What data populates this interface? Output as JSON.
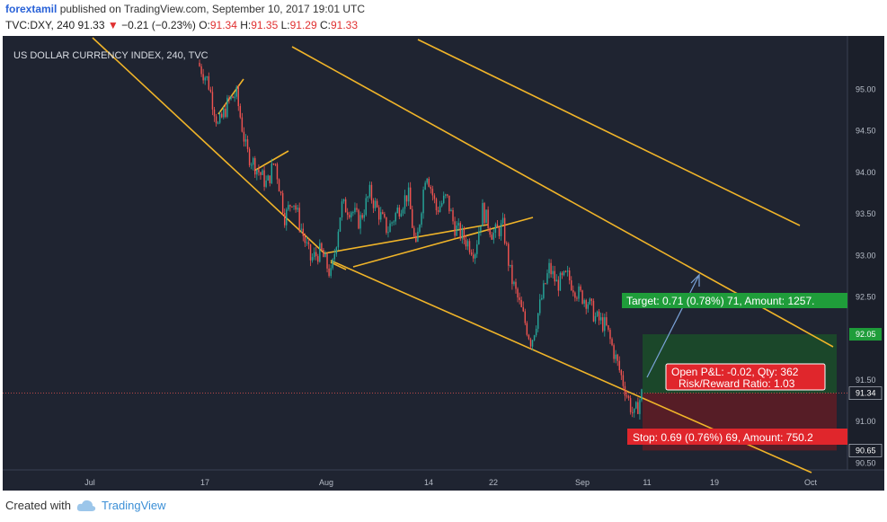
{
  "header": {
    "author": "forextamil",
    "published_text": "published on TradingView.com, September 10, 2017 19:01 UTC",
    "symbol": "TVC:DXY, 240",
    "last": "91.33",
    "change": "−0.21 (−0.23%)",
    "open_label": "O:",
    "open": "91.34",
    "high_label": "H:",
    "high": "91.35",
    "low_label": "L:",
    "low": "91.29",
    "close_label": "C:",
    "close": "91.33"
  },
  "footer": {
    "created_with": "Created with",
    "brand": "TradingView"
  },
  "colors": {
    "background": "#1f2431",
    "up": "#26a69a",
    "down": "#ef5350",
    "trendline": "#f0b429",
    "target_zone": "#1b4a2a",
    "stop_zone": "#5a1e26",
    "target_label_bg": "#1f9d3a",
    "stop_label_bg": "#e0262c",
    "projection": "#7aa2d8"
  },
  "chart_data": {
    "type": "candlestick",
    "title": "US DOLLAR CURRENCY INDEX, 240, TVC",
    "ylim": [
      90.2,
      95.4
    ],
    "y_ticks": [
      "95.00",
      "94.50",
      "94.00",
      "93.50",
      "93.00",
      "92.50",
      "92.05",
      "91.50",
      "91.34",
      "91.00",
      "90.65",
      "90.50"
    ],
    "x_ticks": [
      "Jul",
      "17",
      "Aug",
      "14",
      "22",
      "Sep",
      "11",
      "19",
      "Oct"
    ],
    "price_path": [
      [
        95.32,
        0
      ],
      [
        95.1,
        0.04
      ],
      [
        94.55,
        0.08
      ],
      [
        94.85,
        0.12
      ],
      [
        94.95,
        0.15
      ],
      [
        94.25,
        0.19
      ],
      [
        94.05,
        0.23
      ],
      [
        93.85,
        0.27
      ],
      [
        94.15,
        0.3
      ],
      [
        93.45,
        0.34
      ],
      [
        93.7,
        0.37
      ],
      [
        93.25,
        0.41
      ],
      [
        92.95,
        0.44
      ],
      [
        93.05,
        0.48
      ],
      [
        92.75,
        0.52
      ],
      [
        93.6,
        0.56
      ],
      [
        93.55,
        0.6
      ],
      [
        93.4,
        0.63
      ],
      [
        93.75,
        0.67
      ],
      [
        93.55,
        0.7
      ],
      [
        93.3,
        0.74
      ],
      [
        93.55,
        0.78
      ],
      [
        93.75,
        0.82
      ],
      [
        93.05,
        0.85
      ],
      [
        94.05,
        0.89
      ],
      [
        93.55,
        0.93
      ],
      [
        93.7,
        0.97
      ],
      [
        93.35,
        1.0
      ],
      [
        93.2,
        1.04
      ],
      [
        93.05,
        1.08
      ],
      [
        93.55,
        1.11
      ],
      [
        93.25,
        1.15
      ],
      [
        93.35,
        1.19
      ],
      [
        92.75,
        1.22
      ],
      [
        92.35,
        1.26
      ],
      [
        91.95,
        1.3
      ],
      [
        92.35,
        1.33
      ],
      [
        92.85,
        1.37
      ],
      [
        92.65,
        1.4
      ],
      [
        92.75,
        1.44
      ],
      [
        92.55,
        1.48
      ],
      [
        92.45,
        1.52
      ],
      [
        92.25,
        1.55
      ],
      [
        92.15,
        1.59
      ],
      [
        91.85,
        1.62
      ],
      [
        91.45,
        1.66
      ],
      [
        91.05,
        1.7
      ],
      [
        91.33,
        1.73
      ]
    ],
    "trade": {
      "entry": 91.34,
      "target": 92.05,
      "stop": 90.65,
      "target_label": "Target: 0.71 (0.78%) 71, Amount: 1257.",
      "stop_label": "Stop: 0.69 (0.76%) 69, Amount: 750.2",
      "pnl_label": "Open P&L: -0.02, Qty: 362",
      "rr_label": "Risk/Reward Ratio: 1.03"
    }
  }
}
